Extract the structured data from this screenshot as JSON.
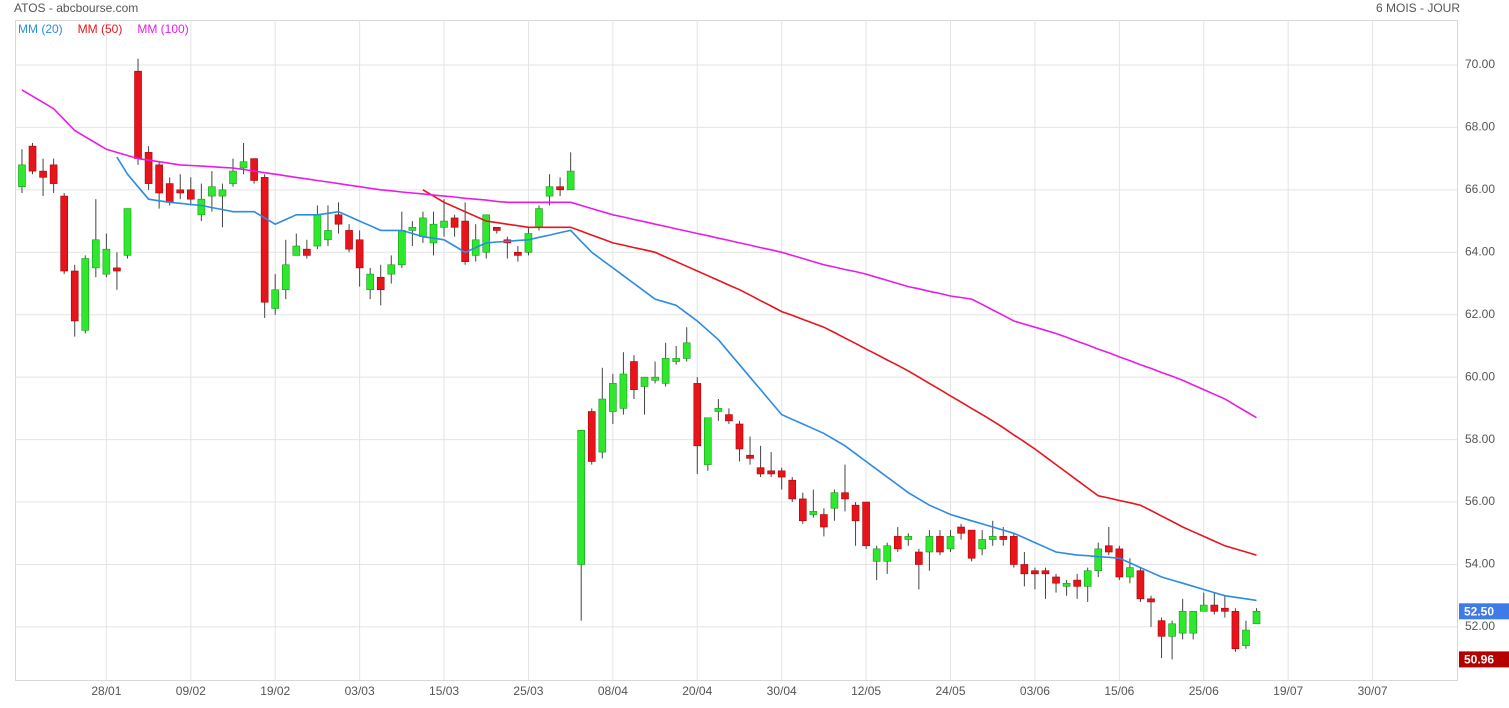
{
  "chart_data": {
    "type": "candlestick",
    "title": "ATOS - abcbourse.com",
    "subtitle": "6 MOIS - JOUR",
    "up_color": "#2ee82e",
    "down_color": "#e8141c",
    "open": [
      66.1,
      67.4,
      66.6,
      66.8,
      65.8,
      63.4,
      61.5,
      63.5,
      63.3,
      63.5,
      63.9,
      69.8,
      67.2,
      66.8,
      66.2,
      66.0,
      66.0,
      65.2,
      65.8,
      65.8,
      66.2,
      66.7,
      67.0,
      66.4,
      62.2,
      62.8,
      63.9,
      64.1,
      64.2,
      64.4,
      65.2,
      64.7,
      64.4,
      62.8,
      63.2,
      63.3,
      63.6,
      64.7,
      64.5,
      64.3,
      64.8,
      65.1,
      65.0,
      63.9,
      64.0,
      64.8,
      64.4,
      64.0,
      64.0,
      64.8,
      65.8,
      66.1,
      66.0,
      54.0,
      58.9,
      57.6,
      58.9,
      59.0,
      60.5,
      59.7,
      59.9,
      59.8,
      60.5,
      60.6,
      59.8,
      57.2,
      58.9,
      58.8,
      58.5,
      57.5,
      57.1,
      57.0,
      57.0,
      56.7,
      56.1,
      55.6,
      55.6,
      55.8,
      56.3,
      55.9,
      56.0,
      54.1,
      54.1,
      54.9,
      54.8,
      54.4,
      54.4,
      54.9,
      54.5,
      55.2,
      55.1,
      54.5,
      54.8,
      54.9,
      54.9,
      54.0,
      53.8,
      53.8,
      53.6,
      53.3,
      53.5,
      53.3,
      53.8,
      54.6,
      54.5,
      53.6,
      53.8,
      52.9,
      52.2,
      51.7,
      51.8,
      51.8,
      52.5,
      52.7,
      52.6,
      52.5,
      51.4,
      52.1
    ],
    "high": [
      67.3,
      67.5,
      67.0,
      67.0,
      65.9,
      63.6,
      63.9,
      65.7,
      64.6,
      64.0,
      65.4,
      70.2,
      67.4,
      66.9,
      66.4,
      66.5,
      66.4,
      66.2,
      66.6,
      66.2,
      67.0,
      67.5,
      67.0,
      66.5,
      63.3,
      64.4,
      64.6,
      64.4,
      65.5,
      65.5,
      65.6,
      64.9,
      64.7,
      63.5,
      63.6,
      63.9,
      65.3,
      65.0,
      65.3,
      65.3,
      65.7,
      65.2,
      65.6,
      64.9,
      65.2,
      64.8,
      64.5,
      64.2,
      64.8,
      65.5,
      66.5,
      66.4,
      67.2,
      58.3,
      59.0,
      60.3,
      60.1,
      60.8,
      60.7,
      60.0,
      60.5,
      61.1,
      61.0,
      61.6,
      60.0,
      58.7,
      59.3,
      59.0,
      58.6,
      58.1,
      57.8,
      57.6,
      57.1,
      56.8,
      56.3,
      56.4,
      55.8,
      56.4,
      57.2,
      56.0,
      56.0,
      54.6,
      54.7,
      55.2,
      55.0,
      54.5,
      55.1,
      55.1,
      55.1,
      55.3,
      55.1,
      55.1,
      55.4,
      55.2,
      55.0,
      54.4,
      53.9,
      53.9,
      53.7,
      53.5,
      53.7,
      53.9,
      54.7,
      55.2,
      54.6,
      54.2,
      53.9,
      53.0,
      52.3,
      52.2,
      52.9,
      52.5,
      53.1,
      53.1,
      53.0,
      52.6,
      52.2,
      52.6
    ],
    "low": [
      65.9,
      66.5,
      65.8,
      65.9,
      63.3,
      61.3,
      61.4,
      63.2,
      63.2,
      62.8,
      63.8,
      66.8,
      66.0,
      65.4,
      65.5,
      65.7,
      65.5,
      65.0,
      65.3,
      64.8,
      66.1,
      66.5,
      66.2,
      61.9,
      62.0,
      62.5,
      63.9,
      63.8,
      64.1,
      64.2,
      64.6,
      64.0,
      62.9,
      62.5,
      62.3,
      63.0,
      63.5,
      64.2,
      64.3,
      63.9,
      64.5,
      64.5,
      63.6,
      63.7,
      63.8,
      64.6,
      63.8,
      63.7,
      63.9,
      64.7,
      65.5,
      65.8,
      66.0,
      52.2,
      57.2,
      57.4,
      58.5,
      58.8,
      59.3,
      58.8,
      59.8,
      59.7,
      60.4,
      60.5,
      56.9,
      57.0,
      58.6,
      58.5,
      57.3,
      57.2,
      56.8,
      56.8,
      56.4,
      56.0,
      55.3,
      55.5,
      54.9,
      55.4,
      55.7,
      54.6,
      54.5,
      53.5,
      53.7,
      54.4,
      54.6,
      53.2,
      53.8,
      54.3,
      54.4,
      54.8,
      54.1,
      54.3,
      54.6,
      54.6,
      53.9,
      53.3,
      53.2,
      52.9,
      53.1,
      53.0,
      52.9,
      52.8,
      53.6,
      54.3,
      53.5,
      53.4,
      52.8,
      52.0,
      51.0,
      50.96,
      51.6,
      51.6,
      52.5,
      52.4,
      52.3,
      51.2,
      51.3,
      52.1
    ],
    "close": [
      66.8,
      66.6,
      66.4,
      66.2,
      63.4,
      61.8,
      63.8,
      64.4,
      64.1,
      63.4,
      65.4,
      67.0,
      66.2,
      65.9,
      65.6,
      65.9,
      65.7,
      65.7,
      66.1,
      66.0,
      66.6,
      66.9,
      66.3,
      62.4,
      62.8,
      63.6,
      64.2,
      63.9,
      65.2,
      64.7,
      64.9,
      64.1,
      63.5,
      63.3,
      62.8,
      63.6,
      64.7,
      64.8,
      65.1,
      64.9,
      65.0,
      64.8,
      63.7,
      64.4,
      65.2,
      64.7,
      64.3,
      63.9,
      64.6,
      65.4,
      66.1,
      66.0,
      66.6,
      58.3,
      57.3,
      59.3,
      59.8,
      60.1,
      59.6,
      60.0,
      60.0,
      60.6,
      60.6,
      61.1,
      57.8,
      58.7,
      59.0,
      58.6,
      57.7,
      57.4,
      56.9,
      56.9,
      56.8,
      56.1,
      55.4,
      55.7,
      55.2,
      56.3,
      56.1,
      55.4,
      54.6,
      54.5,
      54.6,
      54.5,
      54.9,
      54.0,
      54.9,
      54.4,
      54.9,
      55.0,
      54.2,
      54.8,
      54.9,
      54.8,
      54.0,
      53.7,
      53.7,
      53.7,
      53.4,
      53.4,
      53.3,
      53.8,
      54.5,
      54.4,
      53.6,
      53.9,
      52.9,
      52.8,
      51.7,
      52.1,
      52.5,
      52.5,
      52.7,
      52.5,
      52.5,
      51.3,
      51.9,
      52.5
    ],
    "series": [
      {
        "name": "MM (20)",
        "color": "#2b8be6",
        "values": [
          null,
          null,
          null,
          null,
          null,
          null,
          null,
          null,
          null,
          67.05,
          66.5,
          66.1,
          65.7,
          65.65,
          65.6,
          65.57,
          65.53,
          65.5,
          65.43,
          65.37,
          65.3,
          65.3,
          65.3,
          65.1,
          64.9,
          65.05,
          65.2,
          65.2,
          65.2,
          65.25,
          65.3,
          65.15,
          65.0,
          64.85,
          64.7,
          64.7,
          64.7,
          64.6,
          64.5,
          64.45,
          64.4,
          64.2,
          64.0,
          64.15,
          64.3,
          64.33,
          64.35,
          64.38,
          64.4,
          64.48,
          64.55,
          64.63,
          64.7,
          64.35,
          64.0,
          63.75,
          63.5,
          63.25,
          63.0,
          62.75,
          62.5,
          62.4,
          62.3,
          62.05,
          61.8,
          61.5,
          61.2,
          60.8,
          60.4,
          60.0,
          59.6,
          59.2,
          58.8,
          58.65,
          58.5,
          58.35,
          58.2,
          58.0,
          57.8,
          57.55,
          57.3,
          57.05,
          56.8,
          56.55,
          56.3,
          56.1,
          55.9,
          55.75,
          55.6,
          55.5,
          55.4,
          55.3,
          55.2,
          55.1,
          55.0,
          54.85,
          54.7,
          54.55,
          54.4,
          54.35,
          54.3,
          54.28,
          54.25,
          54.23,
          54.2,
          54.05,
          53.9,
          53.75,
          53.6,
          53.5,
          53.4,
          53.3,
          53.2,
          53.1,
          53.0,
          52.95,
          52.9,
          52.85
        ]
      },
      {
        "name": "MM (50)",
        "color": "#e8141c",
        "values": [
          null,
          null,
          null,
          null,
          null,
          null,
          null,
          null,
          null,
          null,
          null,
          null,
          null,
          null,
          null,
          null,
          null,
          null,
          null,
          null,
          null,
          null,
          null,
          null,
          null,
          null,
          null,
          null,
          null,
          null,
          null,
          null,
          null,
          null,
          null,
          null,
          null,
          null,
          66.0,
          65.8,
          65.6,
          65.45,
          65.3,
          65.15,
          65.0,
          64.95,
          64.9,
          64.85,
          64.8,
          64.8,
          64.8,
          64.8,
          64.8,
          64.68,
          64.55,
          64.43,
          64.3,
          64.23,
          64.15,
          64.08,
          64.0,
          63.85,
          63.7,
          63.55,
          63.4,
          63.25,
          63.1,
          62.95,
          62.8,
          62.63,
          62.45,
          62.28,
          62.1,
          61.98,
          61.85,
          61.73,
          61.6,
          61.43,
          61.25,
          61.08,
          60.9,
          60.73,
          60.55,
          60.38,
          60.2,
          60.0,
          59.8,
          59.6,
          59.4,
          59.2,
          59.0,
          58.8,
          58.6,
          58.38,
          58.15,
          57.93,
          57.7,
          57.45,
          57.2,
          56.95,
          56.7,
          56.45,
          56.2,
          56.13,
          56.05,
          55.98,
          55.9,
          55.73,
          55.55,
          55.38,
          55.2,
          55.05,
          54.9,
          54.75,
          54.6,
          54.5,
          54.4,
          54.3
        ]
      },
      {
        "name": "MM (100)",
        "color": "#e81ce8",
        "values": [
          69.2,
          69.0,
          68.8,
          68.6,
          68.25,
          67.9,
          67.7,
          67.5,
          67.3,
          67.2,
          67.1,
          67.0,
          66.95,
          66.9,
          66.85,
          66.8,
          66.78,
          66.76,
          66.74,
          66.72,
          66.7,
          66.65,
          66.6,
          66.55,
          66.5,
          66.45,
          66.4,
          66.35,
          66.3,
          66.25,
          66.2,
          66.15,
          66.1,
          66.05,
          66.0,
          65.97,
          65.93,
          65.9,
          65.87,
          65.83,
          65.8,
          65.77,
          65.73,
          65.7,
          65.67,
          65.63,
          65.6,
          65.6,
          65.6,
          65.6,
          65.6,
          65.6,
          65.6,
          65.5,
          65.4,
          65.3,
          65.2,
          65.13,
          65.05,
          64.98,
          64.9,
          64.83,
          64.75,
          64.68,
          64.6,
          64.53,
          64.45,
          64.38,
          64.3,
          64.23,
          64.15,
          64.08,
          64.0,
          63.9,
          63.8,
          63.7,
          63.6,
          63.53,
          63.45,
          63.38,
          63.3,
          63.2,
          63.1,
          63.0,
          62.9,
          62.83,
          62.75,
          62.68,
          62.6,
          62.55,
          62.5,
          62.33,
          62.15,
          61.98,
          61.8,
          61.7,
          61.6,
          61.5,
          61.4,
          61.28,
          61.15,
          61.03,
          60.9,
          60.78,
          60.65,
          60.53,
          60.4,
          60.28,
          60.15,
          60.03,
          59.9,
          59.75,
          59.6,
          59.45,
          59.3,
          59.1,
          58.9,
          58.7
        ]
      }
    ],
    "xlim": [
      -0.66,
      136
    ],
    "xticks": [
      {
        "value": 8,
        "label": "28/01"
      },
      {
        "value": 16,
        "label": "09/02"
      },
      {
        "value": 24,
        "label": "19/02"
      },
      {
        "value": 32,
        "label": "03/03"
      },
      {
        "value": 40,
        "label": "15/03"
      },
      {
        "value": 48,
        "label": "25/03"
      },
      {
        "value": 56,
        "label": "08/04"
      },
      {
        "value": 64,
        "label": "20/04"
      },
      {
        "value": 72,
        "label": "30/04"
      },
      {
        "value": 80,
        "label": "12/05"
      },
      {
        "value": 88,
        "label": "24/05"
      },
      {
        "value": 96,
        "label": "03/06"
      },
      {
        "value": 104,
        "label": "15/06"
      },
      {
        "value": 112,
        "label": "25/06"
      },
      {
        "value": 120,
        "label": "19/07"
      },
      {
        "value": 128,
        "label": "30/07"
      }
    ],
    "ylim": [
      50.3,
      71.44
    ],
    "yticks": [
      {
        "value": 52,
        "label": "52.00"
      },
      {
        "value": 54,
        "label": "54.00"
      },
      {
        "value": 56,
        "label": "56.00"
      },
      {
        "value": 58,
        "label": "58.00"
      },
      {
        "value": 60,
        "label": "60.00"
      },
      {
        "value": 62,
        "label": "62.00"
      },
      {
        "value": 64,
        "label": "64.00"
      },
      {
        "value": 66,
        "label": "66.00"
      },
      {
        "value": 68,
        "label": "68.00"
      },
      {
        "value": 70,
        "label": "70.00"
      }
    ],
    "grid": true,
    "last_price": {
      "value": 52.5,
      "label": "52.50",
      "color": "#3f7be6"
    },
    "low_price": {
      "value": 50.96,
      "label": "50.96",
      "color": "#b50000"
    }
  }
}
